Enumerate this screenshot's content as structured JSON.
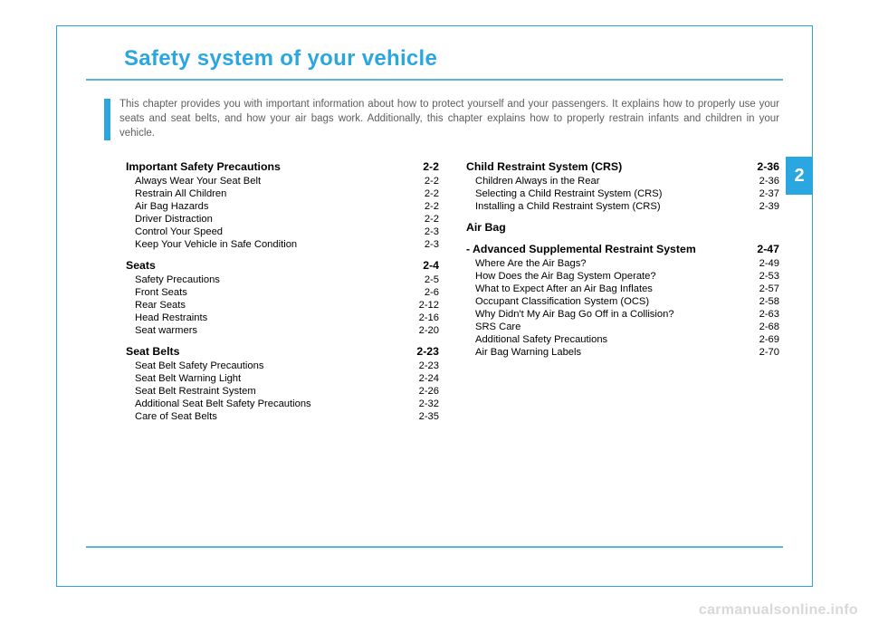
{
  "title": "Safety system of your vehicle",
  "pageTab": "2",
  "intro": "This chapter provides you with important information about how to protect yourself and your passengers. It explains how to properly use your seats and seat belts, and how your air bags work. Additionally, this chapter explains how to properly restrain infants and children in your vehicle.",
  "watermark": "carmanualsonline.info",
  "colors": {
    "accent": "#2aa7e0",
    "rule": "#5bb6de",
    "introText": "#5e5e5e",
    "watermark": "#d8d8d8"
  },
  "left": [
    {
      "h": true,
      "label": "Important Safety Precautions",
      "page": "2-2"
    },
    {
      "label": "Always Wear Your Seat Belt",
      "page": "2-2"
    },
    {
      "label": "Restrain All Children",
      "page": "2-2"
    },
    {
      "label": "Air Bag Hazards",
      "page": "2-2"
    },
    {
      "label": "Driver Distraction",
      "page": "2-2"
    },
    {
      "label": "Control Your Speed",
      "page": "2-3"
    },
    {
      "label": "Keep Your Vehicle in Safe Condition",
      "page": "2-3"
    },
    {
      "h": true,
      "label": "Seats",
      "page": "2-4"
    },
    {
      "label": "Safety Precautions",
      "page": "2-5"
    },
    {
      "label": "Front Seats",
      "page": "2-6"
    },
    {
      "label": "Rear Seats",
      "page": "2-12"
    },
    {
      "label": "Head Restraints",
      "page": "2-16"
    },
    {
      "label": "Seat warmers",
      "page": "2-20"
    },
    {
      "h": true,
      "label": "Seat Belts",
      "page": "2-23"
    },
    {
      "label": "Seat Belt Safety Precautions",
      "page": "2-23"
    },
    {
      "label": "Seat Belt Warning Light",
      "page": "2-24"
    },
    {
      "label": "Seat Belt Restraint System",
      "page": "2-26"
    },
    {
      "label": "Additional Seat Belt Safety Precautions",
      "page": "2-32"
    },
    {
      "label": "Care of Seat Belts",
      "page": "2-35"
    }
  ],
  "right": [
    {
      "h": true,
      "label": "Child Restraint System (CRS)",
      "page": "2-36"
    },
    {
      "label": "Children Always in the Rear",
      "page": "2-36"
    },
    {
      "label": "Selecting a Child Restraint System (CRS)",
      "page": "2-37"
    },
    {
      "label": "Installing a Child Restraint System (CRS)",
      "page": "2-39"
    },
    {
      "h": true,
      "label": "Air Bag",
      "nopage": true
    },
    {
      "h": true,
      "label": "- Advanced Supplemental Restraint System",
      "page": "2-47"
    },
    {
      "label": "Where Are the Air Bags?",
      "page": "2-49"
    },
    {
      "label": "How Does the Air Bag System Operate?",
      "page": "2-53"
    },
    {
      "label": "What to Expect After an Air Bag Inflates",
      "page": "2-57"
    },
    {
      "label": "Occupant Classification System (OCS)",
      "page": "2-58"
    },
    {
      "label": "Why Didn't My Air Bag Go Off in a Collision?",
      "page": "2-63"
    },
    {
      "label": "SRS Care",
      "page": "2-68"
    },
    {
      "label": "Additional Safety Precautions",
      "page": "2-69"
    },
    {
      "label": "Air Bag Warning Labels",
      "page": "2-70"
    }
  ]
}
